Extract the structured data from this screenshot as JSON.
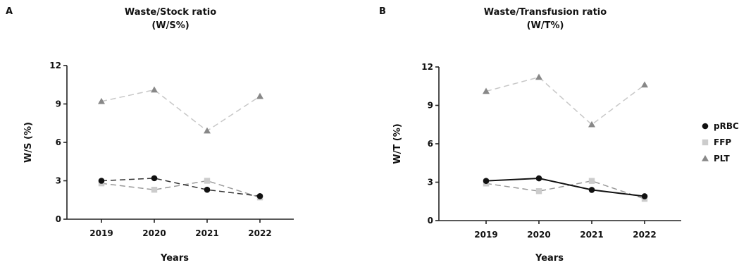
{
  "chart_data": [
    {
      "type": "line",
      "panel_letter": "A",
      "title": "Waste/Stock ratio",
      "subtitle": "(W/S%)",
      "xlabel": "Years",
      "ylabel": "W/S (%)",
      "categories": [
        "2019",
        "2020",
        "2021",
        "2022"
      ],
      "yticks": [
        "0",
        "3",
        "6",
        "9",
        "12"
      ],
      "ylim": [
        0,
        12
      ],
      "grid": false,
      "series": [
        {
          "name": "pRBC",
          "values": [
            3.0,
            3.2,
            2.3,
            1.8
          ],
          "color": "#111111",
          "line_color": "#333333",
          "marker": "circle",
          "dash": "8 5"
        },
        {
          "name": "FFP",
          "values": [
            2.8,
            2.3,
            3.0,
            1.7
          ],
          "color": "#cccccc",
          "line_color": "#999999",
          "marker": "square",
          "dash": "8 5"
        },
        {
          "name": "PLT",
          "values": [
            9.2,
            10.1,
            6.9,
            9.6
          ],
          "color": "#888888",
          "line_color": "#c8c8c8",
          "marker": "triangle",
          "dash": "8 5"
        }
      ]
    },
    {
      "type": "line",
      "panel_letter": "B",
      "title": "Waste/Transfusion ratio",
      "subtitle": "(W/T%)",
      "xlabel": "Years",
      "ylabel": "W/T (%)",
      "categories": [
        "2019",
        "2020",
        "2021",
        "2022"
      ],
      "yticks": [
        "0",
        "3",
        "6",
        "9",
        "12"
      ],
      "ylim": [
        0,
        12
      ],
      "grid": false,
      "series": [
        {
          "name": "pRBC",
          "values": [
            3.1,
            3.3,
            2.4,
            1.9
          ],
          "color": "#111111",
          "line_color": "#111111",
          "marker": "circle",
          "dash": ""
        },
        {
          "name": "FFP",
          "values": [
            2.9,
            2.3,
            3.1,
            1.7
          ],
          "color": "#cccccc",
          "line_color": "#999999",
          "marker": "square",
          "dash": "8 5"
        },
        {
          "name": "PLT",
          "values": [
            10.1,
            11.2,
            7.5,
            10.6
          ],
          "color": "#888888",
          "line_color": "#c8c8c8",
          "marker": "triangle",
          "dash": "8 5"
        }
      ]
    }
  ],
  "legend": {
    "placement": "right",
    "items": [
      {
        "name": "pRBC",
        "marker": "circle",
        "color": "#111111"
      },
      {
        "name": "FFP",
        "marker": "square",
        "color": "#cccccc"
      },
      {
        "name": "PLT",
        "marker": "triangle",
        "color": "#888888"
      }
    ]
  }
}
